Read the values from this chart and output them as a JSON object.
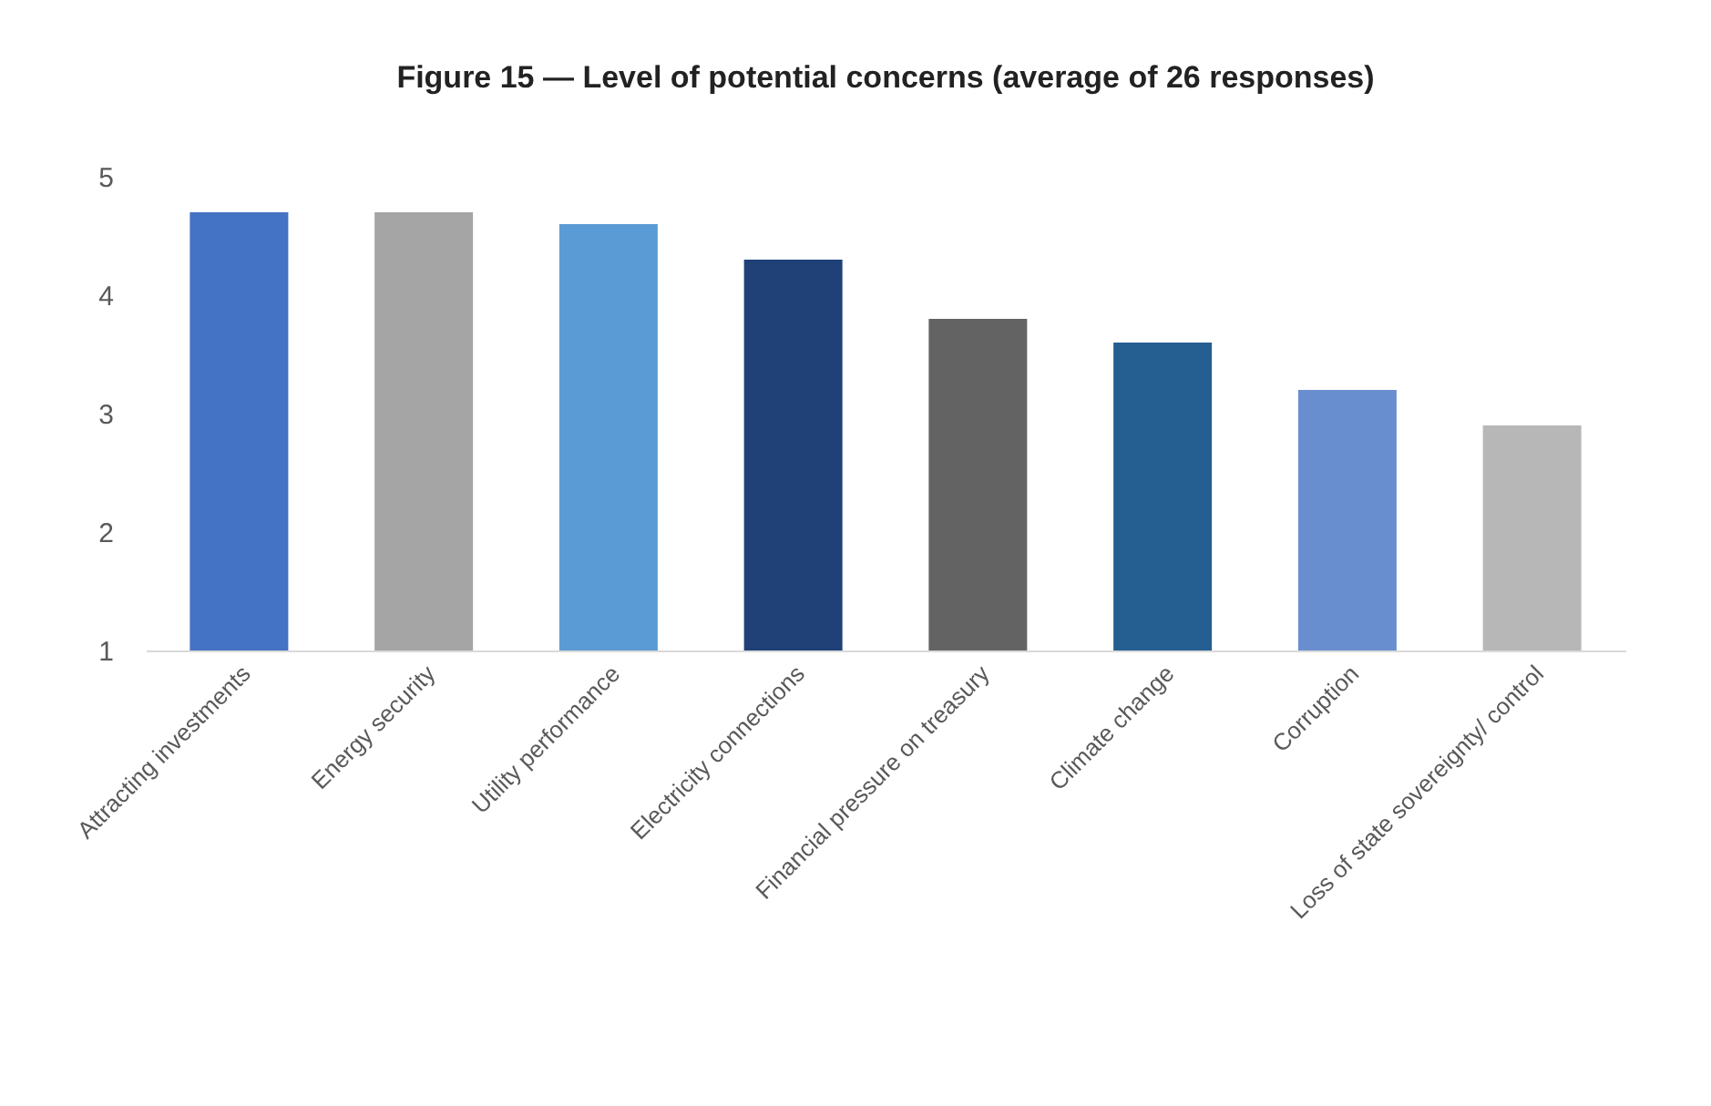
{
  "chart_data": {
    "type": "bar",
    "title": "Figure 15 — Level of potential concerns (average of 26 responses)",
    "categories": [
      "Attracting investments",
      "Energy security",
      "Utility performance",
      "Electricity connections",
      "Financial pressure on treasury",
      "Climate change",
      "Corruption",
      "Loss of state sovereignty/ control"
    ],
    "values": [
      4.7,
      4.7,
      4.6,
      4.3,
      3.8,
      3.6,
      3.2,
      2.9
    ],
    "colors": [
      "#4472c4",
      "#a5a5a5",
      "#5b9bd5",
      "#1f4178",
      "#636363",
      "#255e91",
      "#698ed0",
      "#b7b7b7"
    ],
    "ylim": [
      1,
      5
    ],
    "yticks": [
      1,
      2,
      3,
      4,
      5
    ],
    "grid": false,
    "legend": false
  }
}
